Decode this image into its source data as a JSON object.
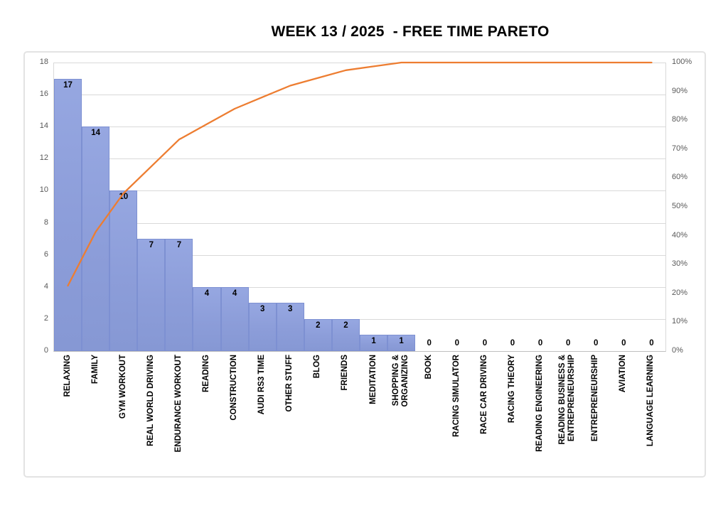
{
  "chart_data": {
    "type": "bar",
    "subtype": "pareto",
    "title": "WEEK 13 / 2025  - FREE TIME PARETO",
    "categories": [
      "RELAXING",
      "FAMILY",
      "GYM WORKOUT",
      "REAL WORLD DRIVING",
      "ENDURANCE WORKOUT",
      "READING",
      "CONSTRUCTION",
      "AUDI RS3 TIME",
      "OTHER STUFF",
      "BLOG",
      "FRIENDS",
      "MEDITATION",
      "SHOPPING &\nORGANIZING",
      "BOOK",
      "RACING SIMULATOR",
      "RACE CAR DRIVING",
      "RACING THEORY",
      "READING ENGINEERING",
      "READING BUSINESS &\nENTREPRENEURSHIP",
      "ENTREPRENEURSHIP",
      "AVIATION",
      "LANGUAGE LEARNING"
    ],
    "values": [
      17,
      14,
      10,
      7,
      7,
      4,
      4,
      3,
      3,
      2,
      2,
      1,
      1,
      0,
      0,
      0,
      0,
      0,
      0,
      0,
      0,
      0
    ],
    "cumulative_pct": [
      22.67,
      41.33,
      54.67,
      64.0,
      73.33,
      78.67,
      84.0,
      88.0,
      92.0,
      94.67,
      97.33,
      98.67,
      100,
      100,
      100,
      100,
      100,
      100,
      100,
      100,
      100,
      100
    ],
    "y_left": {
      "min": 0,
      "max": 18,
      "step": 2,
      "tick_labels": [
        "0",
        "2",
        "4",
        "6",
        "8",
        "10",
        "12",
        "14",
        "16",
        "18"
      ]
    },
    "y_right": {
      "min": 0,
      "max": 100,
      "step": 10,
      "tick_labels": [
        "0%",
        "10%",
        "20%",
        "30%",
        "40%",
        "50%",
        "60%",
        "70%",
        "80%",
        "90%",
        "100%"
      ]
    },
    "grid": true,
    "legend": "none",
    "colors": {
      "bar_fill": "#8C9DD9",
      "bar_border": "#7D90D2",
      "line": "#ED7D31",
      "gridline": "#D9D9D9",
      "axis_line": "#BFBFBF",
      "tick_text": "#595959",
      "label_text": "#000000",
      "frame_border": "#E3E3E3"
    }
  }
}
